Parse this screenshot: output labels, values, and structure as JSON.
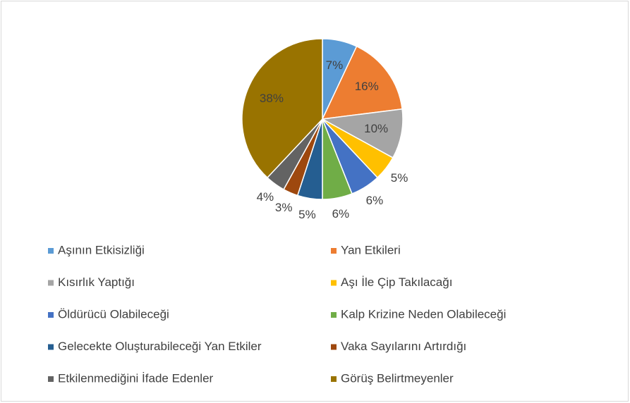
{
  "chart_data": {
    "type": "pie",
    "categories": [
      "Aşının Etkisizliği",
      "Yan Etkileri",
      "Kısırlık Yaptığı",
      "Aşı İle Çip Takılacağı",
      "Öldürücü Olabileceği",
      "Kalp Krizine Neden Olabileceği",
      "Gelecekte Oluşturabileceği Yan Etkiler",
      "Vaka Sayılarını Artırdığı",
      "Etkilenmediğini İfade Edenler",
      "Görüş Belirtmeyenler"
    ],
    "values": [
      7,
      16,
      10,
      5,
      6,
      6,
      5,
      3,
      4,
      38
    ],
    "value_labels": [
      "7%",
      "16%",
      "10%",
      "5%",
      "6%",
      "6%",
      "5%",
      "3%",
      "4%",
      "38%"
    ],
    "colors": [
      "#5B9BD5",
      "#ED7D31",
      "#A5A5A5",
      "#FFC000",
      "#4472C4",
      "#70AD47",
      "#255E91",
      "#9E480E",
      "#636363",
      "#997300"
    ],
    "legend": "bottom"
  }
}
